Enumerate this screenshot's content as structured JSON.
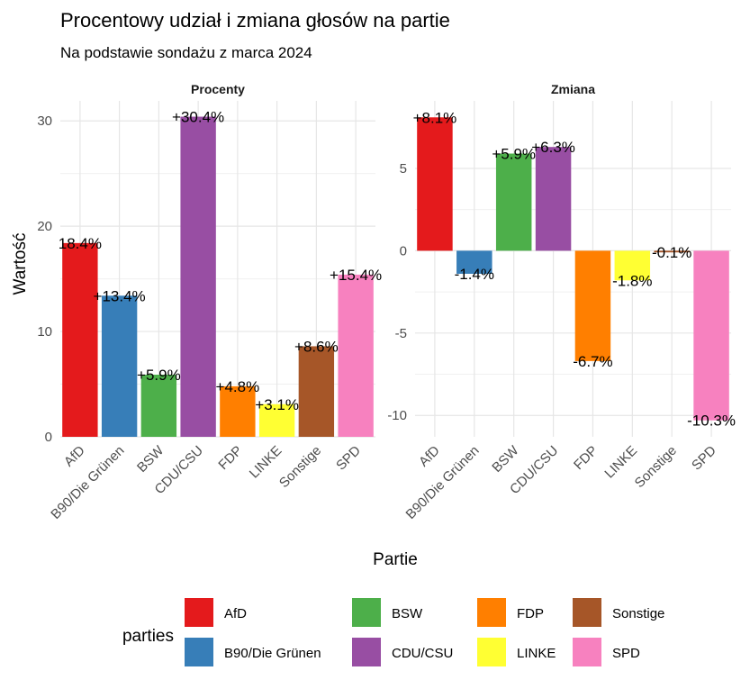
{
  "chart_data": {
    "type": "bar",
    "title": "Procentowy udział i zmiana głosów na partie",
    "subtitle": "Na podstawie sondażu z marca 2024",
    "xlabel": "Partie",
    "ylabel": "Wartość",
    "categories": [
      "AfD",
      "B90/Die Grünen",
      "BSW",
      "CDU/CSU",
      "FDP",
      "LINKE",
      "Sonstige",
      "SPD"
    ],
    "colors": {
      "AfD": "#E41A1C",
      "B90/Die Grünen": "#377EB8",
      "BSW": "#4DAF4A",
      "CDU/CSU": "#984EA3",
      "FDP": "#FF7F00",
      "LINKE": "#FFFF33",
      "Sonstige": "#A65628",
      "SPD": "#F781BF"
    },
    "panels": [
      {
        "name": "Procenty",
        "values": [
          18.4,
          13.4,
          5.9,
          30.4,
          4.8,
          3.1,
          8.6,
          15.4
        ],
        "labels": [
          "18.4%",
          "+13.4%",
          "+5.9%",
          "+30.4%",
          "+4.8%",
          "+3.1%",
          "+8.6%",
          "+15.4%"
        ],
        "ylim": [
          0,
          31.9
        ],
        "yticks": [
          0,
          10,
          20,
          30
        ]
      },
      {
        "name": "Zmiana",
        "values": [
          8.1,
          -1.4,
          5.9,
          6.3,
          -6.7,
          -1.8,
          -0.1,
          -10.3
        ],
        "labels": [
          "+8.1%",
          "-1.4%",
          "+5.9%",
          "+6.3%",
          "-6.7%",
          "-1.8%",
          "-0.1%",
          "-10.3%"
        ],
        "ylim": [
          -11.3,
          9.1
        ],
        "yticks": [
          -10,
          -5,
          0,
          5
        ]
      }
    ],
    "legend": {
      "title": "parties",
      "position": "bottom"
    },
    "grid": true
  }
}
